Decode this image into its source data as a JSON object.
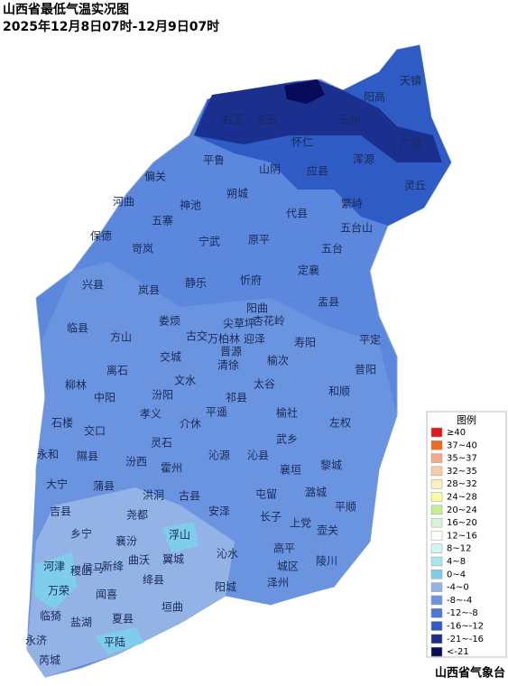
{
  "header": {
    "title": "山西省最低气温实况图",
    "subtitle": "2025年12月8日07时-12月9日07时"
  },
  "counties": [
    "天镇",
    "阳高",
    "右玉",
    "左云",
    "云州",
    "广灵",
    "怀仁",
    "浑源",
    "平鲁",
    "山阴",
    "应县",
    "灵丘",
    "偏关",
    "朔城",
    "神池",
    "繁峙",
    "河曲",
    "五寨",
    "代县",
    "五台山",
    "保德",
    "宁武",
    "原平",
    "岢岚",
    "五台",
    "静乐",
    "忻府",
    "定襄",
    "兴县",
    "岚县",
    "盂县",
    "临县",
    "阳曲",
    "方山",
    "娄烦",
    "寿阳",
    "平定",
    "昔阳",
    "古交",
    "交城",
    "清徐",
    "榆次",
    "离石",
    "柳林",
    "文水",
    "太谷",
    "和顺",
    "中阳",
    "汾阳",
    "祁县",
    "孝义",
    "平遥",
    "榆社",
    "左权",
    "石楼",
    "交口",
    "介休",
    "灵石",
    "武乡",
    "永和",
    "隰县",
    "沁源",
    "沁县",
    "黎城",
    "汾西",
    "霍州",
    "襄垣",
    "大宁",
    "蒲县",
    "洪洞",
    "古县",
    "屯留",
    "潞城",
    "平顺",
    "吉县",
    "安泽",
    "长子",
    "壶关",
    "尧都",
    "乡宁",
    "襄汾",
    "浮山",
    "上党",
    "沁水",
    "高平",
    "陵川",
    "侯马",
    "曲沃",
    "翼城",
    "河津",
    "稷山",
    "新绛",
    "绛县",
    "泽州",
    "城区",
    "万荣",
    "闻喜",
    "阳城",
    "垣曲",
    "临猗",
    "夏县",
    "盐湖",
    "永济",
    "平陆",
    "芮城",
    "杏花岭",
    "尖草坪",
    "万柏林",
    "迎泽",
    "晋源"
  ],
  "legend": {
    "title": "图例",
    "items": [
      {
        "label": "≥40",
        "color": "#e0191c"
      },
      {
        "label": "37~40",
        "color": "#f06a1f"
      },
      {
        "label": "35~37",
        "color": "#f5a88a"
      },
      {
        "label": "32~35",
        "color": "#fbcaa7"
      },
      {
        "label": "28~32",
        "color": "#fef0c0"
      },
      {
        "label": "24~28",
        "color": "#fdfba0"
      },
      {
        "label": "20~24",
        "color": "#c6f096"
      },
      {
        "label": "16~20",
        "color": "#d6f5d6"
      },
      {
        "label": "12~16",
        "color": "#ffffff"
      },
      {
        "label": "8~12",
        "color": "#cff5f5"
      },
      {
        "label": "4~8",
        "color": "#a8e6f0"
      },
      {
        "label": "0~4",
        "color": "#7ecdeb"
      },
      {
        "label": "-4~0",
        "color": "#93b3e6"
      },
      {
        "label": "-8~-4",
        "color": "#6a94e0"
      },
      {
        "label": "-12~-8",
        "color": "#4a76d6"
      },
      {
        "label": "-16~-12",
        "color": "#2f5cc4"
      },
      {
        "label": "-21~-16",
        "color": "#1b2f8f"
      },
      {
        "label": "<-21",
        "color": "#0a0a5a"
      }
    ]
  },
  "source": "山西省气象台"
}
